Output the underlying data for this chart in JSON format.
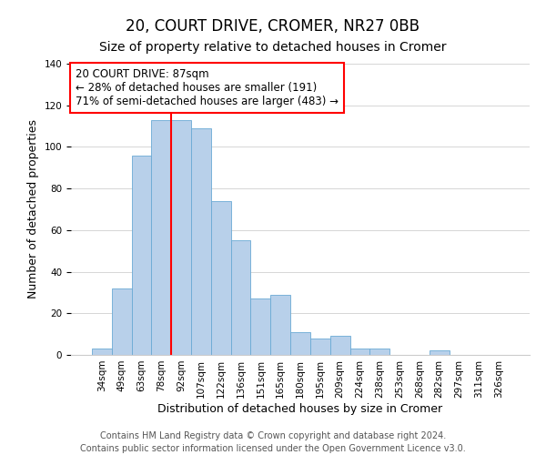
{
  "title": "20, COURT DRIVE, CROMER, NR27 0BB",
  "subtitle": "Size of property relative to detached houses in Cromer",
  "xlabel": "Distribution of detached houses by size in Cromer",
  "ylabel": "Number of detached properties",
  "categories": [
    "34sqm",
    "49sqm",
    "63sqm",
    "78sqm",
    "92sqm",
    "107sqm",
    "122sqm",
    "136sqm",
    "151sqm",
    "165sqm",
    "180sqm",
    "195sqm",
    "209sqm",
    "224sqm",
    "238sqm",
    "253sqm",
    "268sqm",
    "282sqm",
    "297sqm",
    "311sqm",
    "326sqm"
  ],
  "values": [
    3,
    32,
    96,
    113,
    113,
    109,
    74,
    55,
    27,
    29,
    11,
    8,
    9,
    3,
    3,
    0,
    0,
    2,
    0,
    0,
    0
  ],
  "bar_color": "#b8d0ea",
  "bar_edge_color": "#6aaad4",
  "annotation_box_text": "20 COURT DRIVE: 87sqm\n← 28% of detached houses are smaller (191)\n71% of semi-detached houses are larger (483) →",
  "annotation_box_edge_color": "red",
  "vline_color": "red",
  "vline_x": 3.5,
  "ylim": [
    0,
    140
  ],
  "footnote1": "Contains HM Land Registry data © Crown copyright and database right 2024.",
  "footnote2": "Contains public sector information licensed under the Open Government Licence v3.0.",
  "title_fontsize": 12,
  "subtitle_fontsize": 10,
  "axis_label_fontsize": 9,
  "tick_fontsize": 7.5,
  "annotation_fontsize": 8.5,
  "footnote_fontsize": 7
}
